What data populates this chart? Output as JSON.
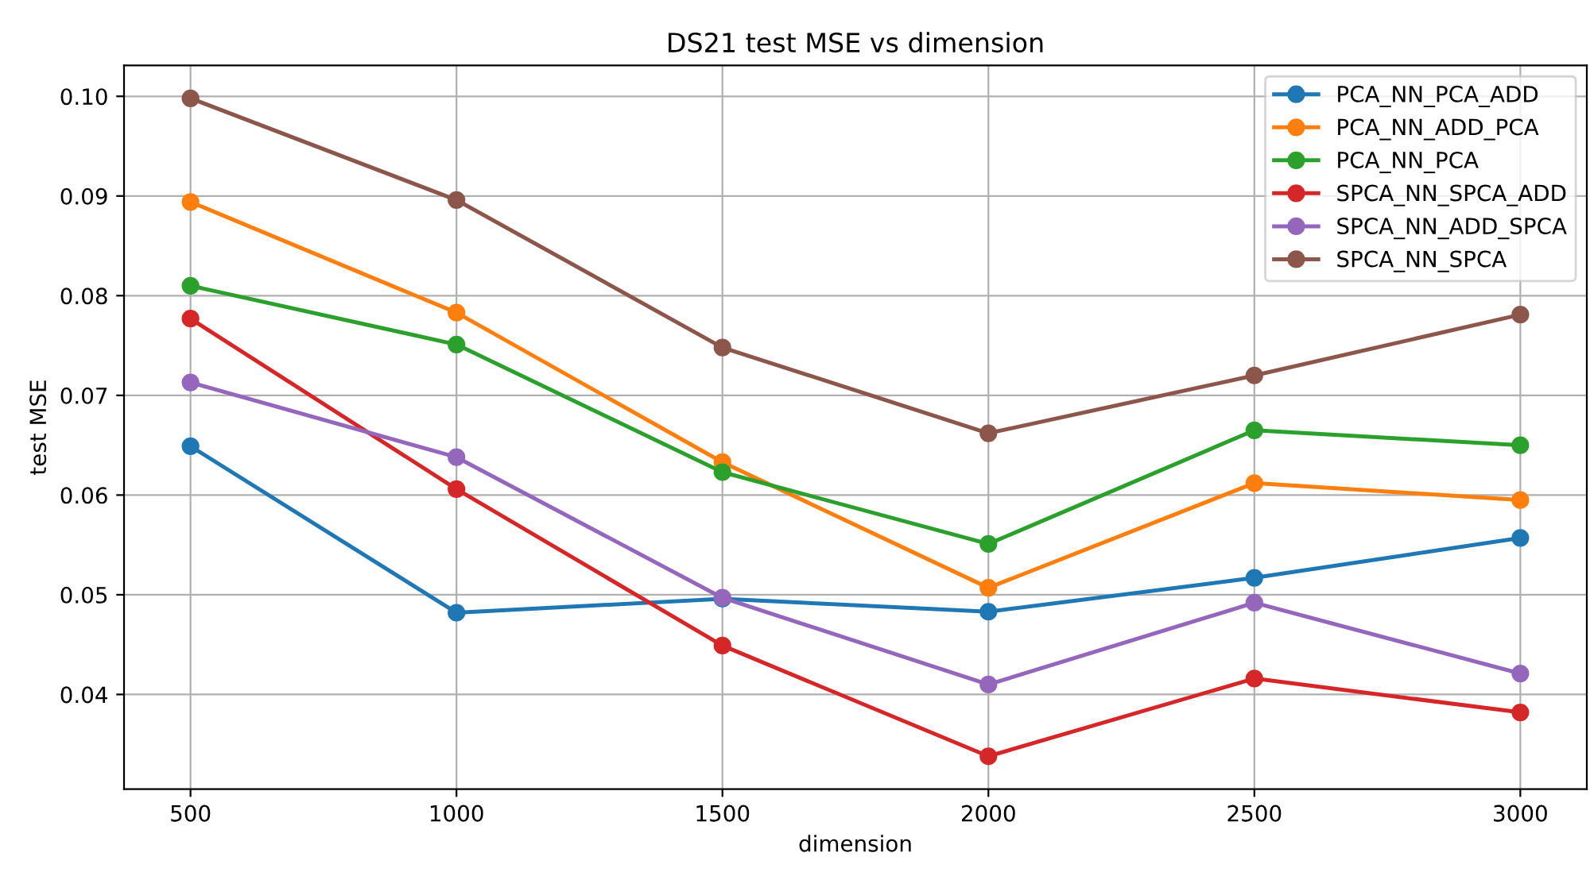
{
  "chart_data": {
    "type": "line",
    "title": "DS21 test MSE vs dimension",
    "xlabel": "dimension",
    "ylabel": "test MSE",
    "x": [
      500,
      1000,
      1500,
      2000,
      2500,
      3000
    ],
    "series": [
      {
        "name": "PCA_NN_PCA_ADD",
        "color": "#1f77b4",
        "values": [
          0.0649,
          0.0482,
          0.0496,
          0.0483,
          0.0517,
          0.0557
        ]
      },
      {
        "name": "PCA_NN_ADD_PCA",
        "color": "#ff7f0e",
        "values": [
          0.0894,
          0.0783,
          0.0633,
          0.0507,
          0.0612,
          0.0595
        ]
      },
      {
        "name": "PCA_NN_PCA",
        "color": "#2ca02c",
        "values": [
          0.081,
          0.0751,
          0.0623,
          0.0551,
          0.0665,
          0.065
        ]
      },
      {
        "name": "SPCA_NN_SPCA_ADD",
        "color": "#d62728",
        "values": [
          0.0777,
          0.0606,
          0.0449,
          0.0338,
          0.0416,
          0.0382
        ]
      },
      {
        "name": "SPCA_NN_ADD_SPCA",
        "color": "#9467bd",
        "values": [
          0.0713,
          0.0638,
          0.0497,
          0.041,
          0.0492,
          0.0421
        ]
      },
      {
        "name": "SPCA_NN_SPCA",
        "color": "#8c564b",
        "values": [
          0.0998,
          0.0896,
          0.0748,
          0.0662,
          0.072,
          0.0781
        ]
      }
    ],
    "xlim": [
      375,
      3125
    ],
    "xticks": [
      500,
      1000,
      1500,
      2000,
      2500,
      3000
    ],
    "ylim": [
      0.0305,
      0.1031
    ],
    "yticks": [
      {
        "value": 0.04,
        "label": "0.04"
      },
      {
        "value": 0.05,
        "label": "0.05"
      },
      {
        "value": 0.06,
        "label": "0.06"
      },
      {
        "value": 0.07,
        "label": "0.07"
      },
      {
        "value": 0.08,
        "label": "0.08"
      },
      {
        "value": 0.09,
        "label": "0.09"
      },
      {
        "value": 0.1,
        "label": "0.10"
      }
    ],
    "grid": true,
    "legend": "top right",
    "marker": "circle",
    "line_style": "solid"
  }
}
